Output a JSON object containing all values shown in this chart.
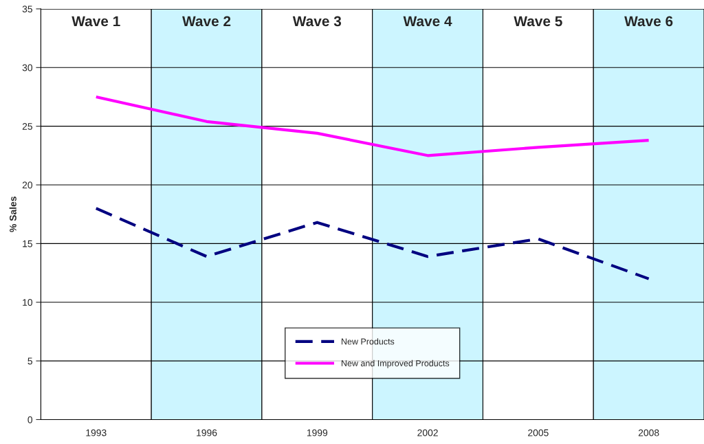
{
  "chart_data": {
    "type": "line",
    "ylabel": "% Sales",
    "categories": [
      "1993",
      "1996",
      "1999",
      "2002",
      "2005",
      "2008"
    ],
    "series": [
      {
        "name": "New Products",
        "color": "#000080",
        "line_style": "dashed",
        "values": [
          18.0,
          13.9,
          16.8,
          13.9,
          15.4,
          12.0
        ]
      },
      {
        "name": "New and Improved Products",
        "color": "#ff00ff",
        "line_style": "solid",
        "values": [
          27.5,
          25.4,
          24.4,
          22.5,
          23.2,
          23.8
        ]
      }
    ],
    "bands": [
      {
        "axis": "x",
        "from": "1993",
        "to": "1993",
        "label": "Wave 1",
        "color": "#ffffff"
      },
      {
        "axis": "x",
        "from": "1996",
        "to": "1996",
        "label": "Wave 2",
        "color": "#ccf5ff"
      },
      {
        "axis": "x",
        "from": "1999",
        "to": "1999",
        "label": "Wave 3",
        "color": "#ffffff"
      },
      {
        "axis": "x",
        "from": "2002",
        "to": "2002",
        "label": "Wave 4",
        "color": "#ccf5ff"
      },
      {
        "axis": "x",
        "from": "2005",
        "to": "2005",
        "label": "Wave 5",
        "color": "#ffffff"
      },
      {
        "axis": "x",
        "from": "2008",
        "to": "2008",
        "label": "Wave 6",
        "color": "#ccf5ff"
      }
    ],
    "ylim": [
      0,
      35
    ],
    "yticks": [
      0,
      5,
      10,
      15,
      20,
      25,
      30,
      35
    ],
    "grid": "y",
    "legend": "bottom",
    "marker": "none"
  }
}
